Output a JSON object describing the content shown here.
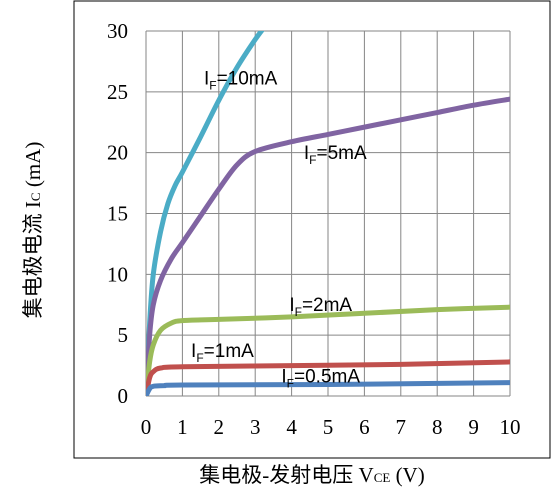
{
  "chart_data": {
    "type": "line",
    "xlabel_main": "集电极-发射电压 V",
    "xlabel_sub": "CE",
    "xlabel_unit": " (V)",
    "ylabel_main": "集电极电流 I",
    "ylabel_sub": "C",
    "ylabel_unit": " (mA)",
    "xlim": [
      0,
      10
    ],
    "ylim": [
      0,
      30
    ],
    "xticks": [
      0,
      1,
      2,
      3,
      4,
      5,
      6,
      7,
      8,
      9,
      10
    ],
    "yticks": [
      0,
      5,
      10,
      15,
      20,
      25,
      30
    ],
    "grid": true,
    "series": [
      {
        "name": "10mA",
        "label_prefix": "I",
        "label_sub": "F",
        "label_rest": "=10mA",
        "color": "#4bacc6",
        "points": [
          [
            0,
            0
          ],
          [
            0.1,
            6
          ],
          [
            0.2,
            10
          ],
          [
            0.4,
            13.5
          ],
          [
            0.6,
            15.8
          ],
          [
            0.8,
            17.3
          ],
          [
            1.0,
            18.4
          ],
          [
            1.5,
            21.3
          ],
          [
            2.0,
            24.3
          ],
          [
            2.5,
            27.0
          ],
          [
            3.0,
            29.3
          ],
          [
            3.3,
            30.5
          ]
        ]
      },
      {
        "name": "5mA",
        "label_prefix": "I",
        "label_sub": "F",
        "label_rest": "=5mA",
        "color": "#8064a2",
        "points": [
          [
            0,
            0
          ],
          [
            0.1,
            5
          ],
          [
            0.2,
            7.5
          ],
          [
            0.4,
            9.5
          ],
          [
            0.7,
            11.3
          ],
          [
            1.0,
            12.6
          ],
          [
            1.5,
            14.8
          ],
          [
            2.0,
            17.0
          ],
          [
            2.5,
            19.0
          ],
          [
            3.0,
            20.1
          ],
          [
            4.0,
            20.9
          ],
          [
            5.0,
            21.5
          ],
          [
            6.0,
            22.1
          ],
          [
            7.0,
            22.7
          ],
          [
            8.0,
            23.3
          ],
          [
            9.0,
            23.9
          ],
          [
            10.0,
            24.4
          ]
        ]
      },
      {
        "name": "2mA",
        "label_prefix": "I",
        "label_sub": "F",
        "label_rest": "=2mA",
        "color": "#9bbb59",
        "points": [
          [
            0,
            0
          ],
          [
            0.1,
            2.8
          ],
          [
            0.2,
            4.2
          ],
          [
            0.4,
            5.4
          ],
          [
            0.7,
            6.0
          ],
          [
            1.0,
            6.2
          ],
          [
            2.0,
            6.3
          ],
          [
            4.0,
            6.5
          ],
          [
            6.0,
            6.8
          ],
          [
            8.0,
            7.1
          ],
          [
            10.0,
            7.3
          ]
        ]
      },
      {
        "name": "1mA",
        "label_prefix": "I",
        "label_sub": "F",
        "label_rest": "=1mA",
        "color": "#c0504d",
        "points": [
          [
            0,
            0
          ],
          [
            0.1,
            1.5
          ],
          [
            0.2,
            2.0
          ],
          [
            0.4,
            2.3
          ],
          [
            1.0,
            2.4
          ],
          [
            4.0,
            2.5
          ],
          [
            7.0,
            2.6
          ],
          [
            10.0,
            2.8
          ]
        ]
      },
      {
        "name": "0.5mA",
        "label_prefix": "I",
        "label_sub": "F",
        "label_rest": "=0.5mA",
        "color": "#4f81bd",
        "points": [
          [
            0,
            0
          ],
          [
            0.1,
            0.6
          ],
          [
            0.2,
            0.8
          ],
          [
            0.5,
            0.85
          ],
          [
            1.0,
            0.9
          ],
          [
            5.0,
            0.95
          ],
          [
            10.0,
            1.1
          ]
        ]
      }
    ],
    "annotations": [
      {
        "series": "10mA",
        "x": 2.6,
        "y": 25.6
      },
      {
        "series": "5mA",
        "x": 5.2,
        "y": 19.5
      },
      {
        "series": "2mA",
        "x": 4.8,
        "y": 7.0
      },
      {
        "series": "1mA",
        "x": 2.1,
        "y": 3.2
      },
      {
        "series": "0.5mA",
        "x": 4.8,
        "y": 1.1
      }
    ]
  }
}
